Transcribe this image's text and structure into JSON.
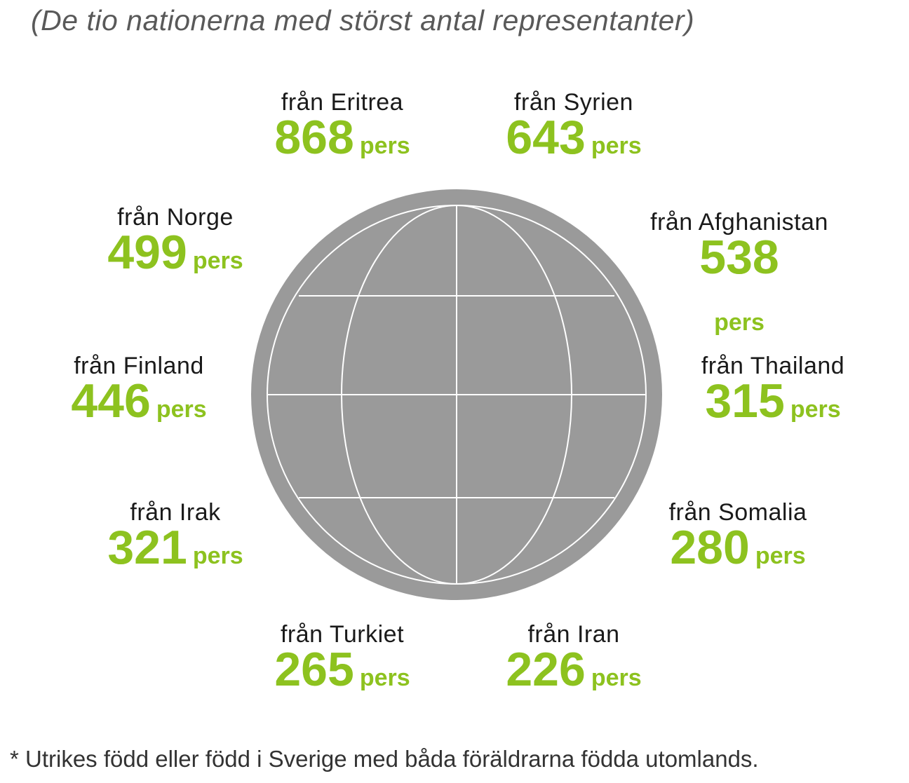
{
  "subtitle": "(De tio nationerna med störst antal representanter)",
  "unit_label": "pers",
  "countries": [
    {
      "label": "från Eritrea",
      "count": "868"
    },
    {
      "label": "från Syrien",
      "count": "643"
    },
    {
      "label": "från Norge",
      "count": "499"
    },
    {
      "label": "från Afghanistan",
      "count": "538"
    },
    {
      "label": "från Finland",
      "count": "446"
    },
    {
      "label": "från Thailand",
      "count": "315"
    },
    {
      "label": "från Irak",
      "count": "321"
    },
    {
      "label": "från Somalia",
      "count": "280"
    },
    {
      "label": "från Turkiet",
      "count": "265"
    },
    {
      "label": "från Iran",
      "count": "226"
    }
  ],
  "footnote": "* Utrikes född eller född i Sverige med båda föräldrarna födda utomlands.",
  "colors": {
    "accent_green": "#8dc21f",
    "globe_grey": "#9a9a9a",
    "globe_lines": "#ffffff"
  },
  "icons": {
    "globe": "globe-icon"
  }
}
